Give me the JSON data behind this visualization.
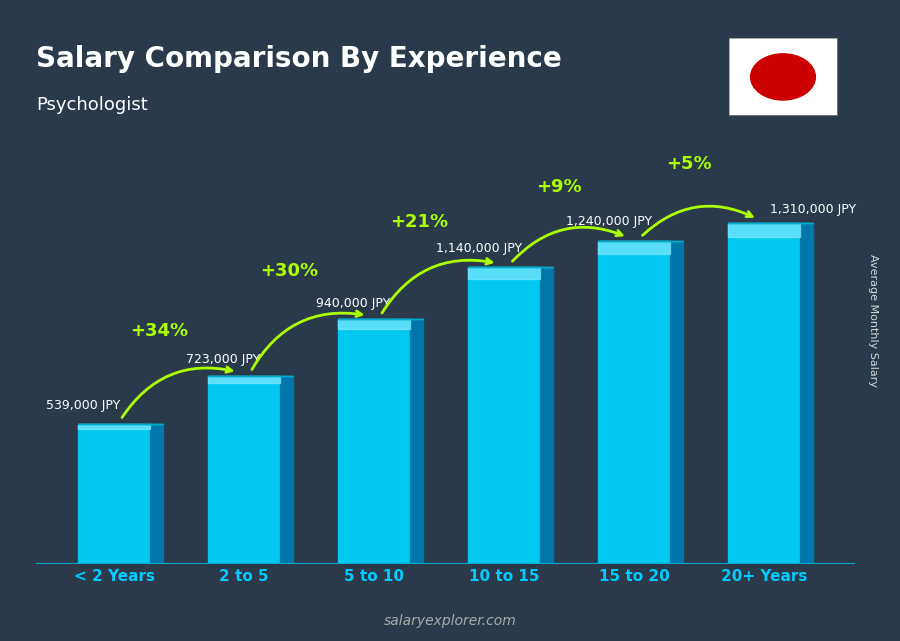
{
  "title": "Salary Comparison By Experience",
  "subtitle": "Psychologist",
  "categories": [
    "< 2 Years",
    "2 to 5",
    "5 to 10",
    "10 to 15",
    "15 to 20",
    "20+ Years"
  ],
  "values": [
    539000,
    723000,
    940000,
    1140000,
    1240000,
    1310000
  ],
  "labels": [
    "539,000 JPY",
    "723,000 JPY",
    "940,000 JPY",
    "1,140,000 JPY",
    "1,240,000 JPY",
    "1,310,000 JPY"
  ],
  "pct_changes": [
    "+34%",
    "+30%",
    "+21%",
    "+9%",
    "+5%"
  ],
  "bar_color_top": "#00d4f5",
  "bar_color_mid": "#00aadd",
  "bar_color_dark": "#0077aa",
  "background_color": "#1a2a3a",
  "title_color": "#ffffff",
  "subtitle_color": "#ffffff",
  "label_color": "#ffffff",
  "pct_color": "#aaff00",
  "xaxis_color": "#00ccff",
  "footer_text": "salaryexplorer.com",
  "ylabel_text": "Average Monthly Salary",
  "ylim_max": 1600000,
  "bar_width": 0.55
}
